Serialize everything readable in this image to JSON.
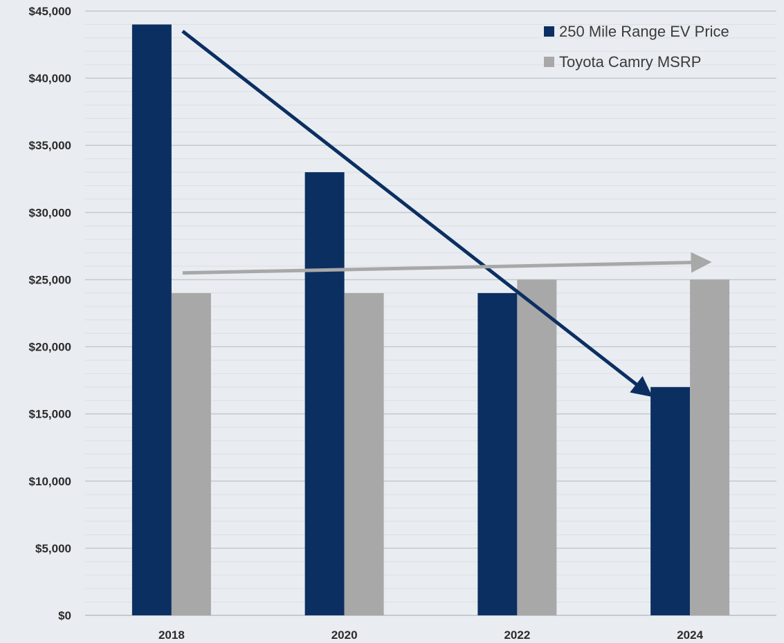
{
  "colors": {
    "background": "#e9edf1",
    "ev": "#0c2f62",
    "camry": "#a8a8a8",
    "gridline_major": "#c4c9ce",
    "gridline_minor": "#dadfe4",
    "axis": "#b8bec4"
  },
  "chart_data": {
    "type": "bar",
    "title": "",
    "xlabel": "",
    "ylabel": "",
    "categories": [
      "2018",
      "2020",
      "2022",
      "2024"
    ],
    "series": [
      {
        "name": "250 Mile Range EV Price",
        "color": "#0c2f62",
        "values": [
          44000,
          33000,
          24000,
          17000
        ]
      },
      {
        "name": "Toyota Camry MSRP",
        "color": "#a8a8a8",
        "values": [
          24000,
          24000,
          25000,
          25000
        ]
      }
    ],
    "ylim": [
      0,
      45000
    ],
    "yticks": [
      0,
      5000,
      10000,
      15000,
      20000,
      25000,
      30000,
      35000,
      40000,
      45000
    ],
    "ytick_labels": [
      "$0",
      "$5,000",
      "$10,000",
      "$15,000",
      "$20,000",
      "$25,000",
      "$30,000",
      "$35,000",
      "$40,000",
      "$45,000"
    ],
    "minor_grid_step": 1000,
    "grid": true,
    "legend_position": "top-right",
    "trend_arrows": [
      {
        "series": "250 Mile Range EV Price",
        "from": [
          "2018",
          43500
        ],
        "to": [
          "2024",
          16500
        ],
        "color": "#0c2f62"
      },
      {
        "series": "Toyota Camry MSRP",
        "from": [
          "2018",
          25500
        ],
        "to": [
          "2024",
          26300
        ],
        "color": "#a8a8a8"
      }
    ]
  }
}
